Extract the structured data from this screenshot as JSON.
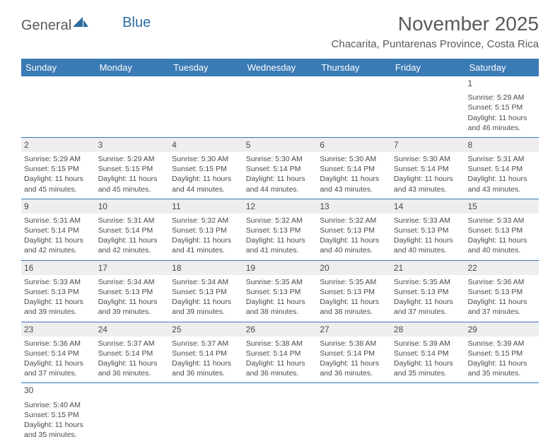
{
  "logo": {
    "text1": "General",
    "text2": "Blue"
  },
  "title": "November 2025",
  "location": "Chacarita, Puntarenas Province, Costa Rica",
  "colors": {
    "header_bar": "#3a7ab5",
    "header_text": "#ffffff",
    "daynum_bg": "#eeeeee",
    "text": "#4a4a4a",
    "rule": "#3a7ab5"
  },
  "weekdays": [
    "Sunday",
    "Monday",
    "Tuesday",
    "Wednesday",
    "Thursday",
    "Friday",
    "Saturday"
  ],
  "weeks": [
    [
      null,
      null,
      null,
      null,
      null,
      null,
      {
        "n": 1,
        "sr": "5:29 AM",
        "ss": "5:15 PM",
        "dl": "11 hours and 46 minutes.",
        "nobar": true
      }
    ],
    [
      {
        "n": 2,
        "sr": "5:29 AM",
        "ss": "5:15 PM",
        "dl": "11 hours and 45 minutes."
      },
      {
        "n": 3,
        "sr": "5:29 AM",
        "ss": "5:15 PM",
        "dl": "11 hours and 45 minutes."
      },
      {
        "n": 4,
        "sr": "5:30 AM",
        "ss": "5:15 PM",
        "dl": "11 hours and 44 minutes."
      },
      {
        "n": 5,
        "sr": "5:30 AM",
        "ss": "5:14 PM",
        "dl": "11 hours and 44 minutes."
      },
      {
        "n": 6,
        "sr": "5:30 AM",
        "ss": "5:14 PM",
        "dl": "11 hours and 43 minutes."
      },
      {
        "n": 7,
        "sr": "5:30 AM",
        "ss": "5:14 PM",
        "dl": "11 hours and 43 minutes."
      },
      {
        "n": 8,
        "sr": "5:31 AM",
        "ss": "5:14 PM",
        "dl": "11 hours and 43 minutes."
      }
    ],
    [
      {
        "n": 9,
        "sr": "5:31 AM",
        "ss": "5:14 PM",
        "dl": "11 hours and 42 minutes."
      },
      {
        "n": 10,
        "sr": "5:31 AM",
        "ss": "5:14 PM",
        "dl": "11 hours and 42 minutes."
      },
      {
        "n": 11,
        "sr": "5:32 AM",
        "ss": "5:13 PM",
        "dl": "11 hours and 41 minutes."
      },
      {
        "n": 12,
        "sr": "5:32 AM",
        "ss": "5:13 PM",
        "dl": "11 hours and 41 minutes."
      },
      {
        "n": 13,
        "sr": "5:32 AM",
        "ss": "5:13 PM",
        "dl": "11 hours and 40 minutes."
      },
      {
        "n": 14,
        "sr": "5:33 AM",
        "ss": "5:13 PM",
        "dl": "11 hours and 40 minutes."
      },
      {
        "n": 15,
        "sr": "5:33 AM",
        "ss": "5:13 PM",
        "dl": "11 hours and 40 minutes."
      }
    ],
    [
      {
        "n": 16,
        "sr": "5:33 AM",
        "ss": "5:13 PM",
        "dl": "11 hours and 39 minutes."
      },
      {
        "n": 17,
        "sr": "5:34 AM",
        "ss": "5:13 PM",
        "dl": "11 hours and 39 minutes."
      },
      {
        "n": 18,
        "sr": "5:34 AM",
        "ss": "5:13 PM",
        "dl": "11 hours and 39 minutes."
      },
      {
        "n": 19,
        "sr": "5:35 AM",
        "ss": "5:13 PM",
        "dl": "11 hours and 38 minutes."
      },
      {
        "n": 20,
        "sr": "5:35 AM",
        "ss": "5:13 PM",
        "dl": "11 hours and 38 minutes."
      },
      {
        "n": 21,
        "sr": "5:35 AM",
        "ss": "5:13 PM",
        "dl": "11 hours and 37 minutes."
      },
      {
        "n": 22,
        "sr": "5:36 AM",
        "ss": "5:13 PM",
        "dl": "11 hours and 37 minutes."
      }
    ],
    [
      {
        "n": 23,
        "sr": "5:36 AM",
        "ss": "5:14 PM",
        "dl": "11 hours and 37 minutes."
      },
      {
        "n": 24,
        "sr": "5:37 AM",
        "ss": "5:14 PM",
        "dl": "11 hours and 36 minutes."
      },
      {
        "n": 25,
        "sr": "5:37 AM",
        "ss": "5:14 PM",
        "dl": "11 hours and 36 minutes."
      },
      {
        "n": 26,
        "sr": "5:38 AM",
        "ss": "5:14 PM",
        "dl": "11 hours and 36 minutes."
      },
      {
        "n": 27,
        "sr": "5:38 AM",
        "ss": "5:14 PM",
        "dl": "11 hours and 36 minutes."
      },
      {
        "n": 28,
        "sr": "5:39 AM",
        "ss": "5:14 PM",
        "dl": "11 hours and 35 minutes."
      },
      {
        "n": 29,
        "sr": "5:39 AM",
        "ss": "5:15 PM",
        "dl": "11 hours and 35 minutes."
      }
    ],
    [
      {
        "n": 30,
        "sr": "5:40 AM",
        "ss": "5:15 PM",
        "dl": "11 hours and 35 minutes.",
        "nobar": true
      },
      null,
      null,
      null,
      null,
      null,
      null
    ]
  ],
  "labels": {
    "sunrise": "Sunrise: ",
    "sunset": "Sunset: ",
    "daylight": "Daylight: "
  }
}
